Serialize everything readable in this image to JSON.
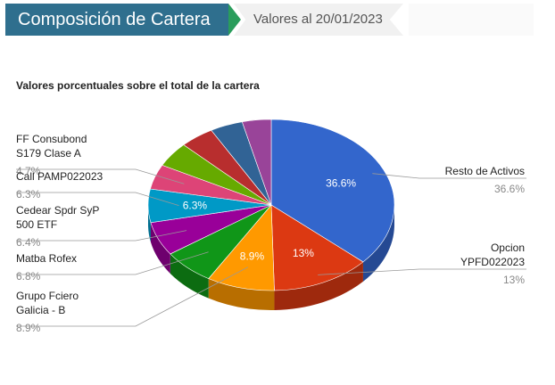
{
  "header": {
    "title": "Composición de Cartera",
    "date_label": "Valores al 20/01/2023"
  },
  "colors": {
    "header_bg": "#2f6f8e",
    "header_accent": "#2a9d5c",
    "date_bg": "#f1f1f1"
  },
  "chart_data": {
    "type": "pie",
    "style": "3d",
    "title": "Valores porcentuales sobre el total de la cartera",
    "slices": [
      {
        "label_lines": [
          "Resto de Activos"
        ],
        "value": 36.6,
        "value_label": "36.6%",
        "inside_label": "36.6%",
        "color": "#3366cc",
        "side": "right"
      },
      {
        "label_lines": [
          "Opcion",
          "YPFD022023"
        ],
        "value": 13,
        "value_label": "13%",
        "inside_label": "13%",
        "color": "#dc3912",
        "side": "right"
      },
      {
        "label_lines": [
          "Grupo Fciero",
          "Galicia - B"
        ],
        "value": 8.9,
        "value_label": "8.9%",
        "inside_label": "8.9%",
        "color": "#ff9900",
        "side": "left"
      },
      {
        "label_lines": [
          "Matba Rofex"
        ],
        "value": 6.8,
        "value_label": "6.8%",
        "inside_label": "",
        "color": "#109618",
        "side": "left"
      },
      {
        "label_lines": [
          "Cedear Spdr SyP",
          "500 ETF"
        ],
        "value": 6.4,
        "value_label": "6.4%",
        "inside_label": "",
        "color": "#990099",
        "side": "left"
      },
      {
        "label_lines": [
          "Call PAMP022023"
        ],
        "value": 6.3,
        "value_label": "6.3%",
        "inside_label": "6.3%",
        "color": "#0099c6",
        "side": "left"
      },
      {
        "label_lines": [
          "FF Consubond",
          "S179 Clase A"
        ],
        "value": 4.7,
        "value_label": "4.7%",
        "inside_label": "",
        "color": "#dd4477",
        "side": "left"
      },
      {
        "label_lines": [],
        "value": 4.7,
        "value_label": "",
        "inside_label": "",
        "color": "#66aa00",
        "side": "none"
      },
      {
        "label_lines": [],
        "value": 4.5,
        "value_label": "",
        "inside_label": "",
        "color": "#b82e2e",
        "side": "none"
      },
      {
        "label_lines": [],
        "value": 4.3,
        "value_label": "",
        "inside_label": "",
        "color": "#316395",
        "side": "none"
      },
      {
        "label_lines": [],
        "value": 3.8,
        "value_label": "",
        "inside_label": "",
        "color": "#994499",
        "side": "none"
      }
    ]
  }
}
